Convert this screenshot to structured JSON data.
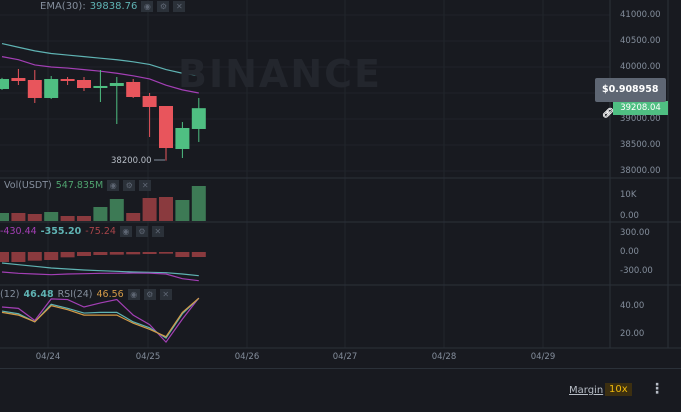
{
  "watermark": "BINANCE",
  "ema_legend": {
    "label": "EMA(30):",
    "value": "39838.76"
  },
  "low_marker": "38200.00",
  "price_axis": [
    "41000.00",
    "40500.00",
    "40000.00",
    "39000.00",
    "38500.00",
    "38000.00"
  ],
  "vol_axis": [
    "10K",
    "0.00"
  ],
  "macd_axis": [
    "300.00",
    "0.00",
    "-300.00"
  ],
  "rsi_axis": [
    "40.00",
    "20.00"
  ],
  "tooltip": {
    "value": "$0.908958",
    "icon": "link-icon"
  },
  "last_price": "39208.04",
  "vol_legend": {
    "label": "Vol(USDT)",
    "value": "547.835M"
  },
  "macd_legend": {
    "dea": "-430.44",
    "dif": "-355.20",
    "hist": "-75.24"
  },
  "rsi_legend": {
    "rsi12_label": "(12)",
    "rsi12": "46.48",
    "rsi24_label": "RSI(24)",
    "rsi24": "46.56"
  },
  "dates": [
    "04/24",
    "04/25",
    "04/26",
    "04/27",
    "04/28",
    "04/29"
  ],
  "footer": {
    "margin_label": "Margin",
    "leverage": "10x",
    "more_icon": "vertical-dots-icon"
  },
  "colors": {
    "up": "#4fbf82",
    "down": "#e8555c",
    "ema_fast": "#5fb3b3",
    "ema_slow": "#a33fb5",
    "rsi24": "#d39a46",
    "leverage_bg": "#3c2f10",
    "leverage_fg": "#f0b90b"
  },
  "chart_data": {
    "type": "candlestick",
    "candles": [
      {
        "o": 39577,
        "h": 39790,
        "l": 39560,
        "c": 39769
      },
      {
        "o": 39788,
        "h": 39962,
        "l": 39654,
        "c": 39731
      },
      {
        "o": 39750,
        "h": 39942,
        "l": 39308,
        "c": 39404
      },
      {
        "o": 39404,
        "h": 39827,
        "l": 39385,
        "c": 39769
      },
      {
        "o": 39769,
        "h": 39808,
        "l": 39654,
        "c": 39731
      },
      {
        "o": 39750,
        "h": 39808,
        "l": 39538,
        "c": 39596
      },
      {
        "o": 39596,
        "h": 39942,
        "l": 39327,
        "c": 39635
      },
      {
        "o": 39635,
        "h": 39808,
        "l": 38904,
        "c": 39692
      },
      {
        "o": 39712,
        "h": 39769,
        "l": 39404,
        "c": 39423
      },
      {
        "o": 39442,
        "h": 39500,
        "l": 38654,
        "c": 39231
      },
      {
        "o": 39250,
        "h": 39250,
        "l": 38200,
        "c": 38442
      },
      {
        "o": 38423,
        "h": 38942,
        "l": 38250,
        "c": 38827
      },
      {
        "o": 38808,
        "h": 39404,
        "l": 38558,
        "c": 39208.04
      }
    ],
    "ema_fast": [
      40450,
      40380,
      40310,
      40260,
      40230,
      40200,
      40170,
      40140,
      40100,
      40050,
      39950,
      39880,
      39838.76
    ],
    "ema_slow": [
      40200,
      40140,
      40040,
      40000,
      39980,
      39950,
      39920,
      39880,
      39830,
      39770,
      39650,
      39560,
      39500
    ],
    "volume": [
      4000,
      4000,
      3500,
      4500,
      2500,
      2500,
      7000,
      11000,
      4000,
      11500,
      12000,
      10500,
      17500
    ],
    "macd_hist": [
      -150,
      -150,
      -130,
      -120,
      -80,
      -60,
      -45,
      -40,
      -35,
      -30,
      -25,
      -75,
      -75
    ],
    "macd_dif": [
      -165,
      -190,
      -215,
      -240,
      -255,
      -270,
      -280,
      -290,
      -300,
      -305,
      -310,
      -330,
      -355.2
    ],
    "macd_dea": [
      -300,
      -320,
      -330,
      -340,
      -330,
      -325,
      -320,
      -318,
      -316,
      -318,
      -330,
      -400,
      -430.44
    ],
    "rsi6": [
      40,
      39,
      30,
      46,
      45.5,
      40,
      43,
      45.5,
      34,
      27,
      14,
      31,
      46.7
    ],
    "rsi12": [
      37,
      35,
      29,
      42,
      39,
      35.5,
      36,
      36,
      29,
      24.6,
      17,
      35,
      46.48
    ],
    "rsi24": [
      36,
      34,
      29,
      41,
      38,
      34,
      34,
      34,
      28,
      23.5,
      18,
      36,
      46.56
    ]
  }
}
